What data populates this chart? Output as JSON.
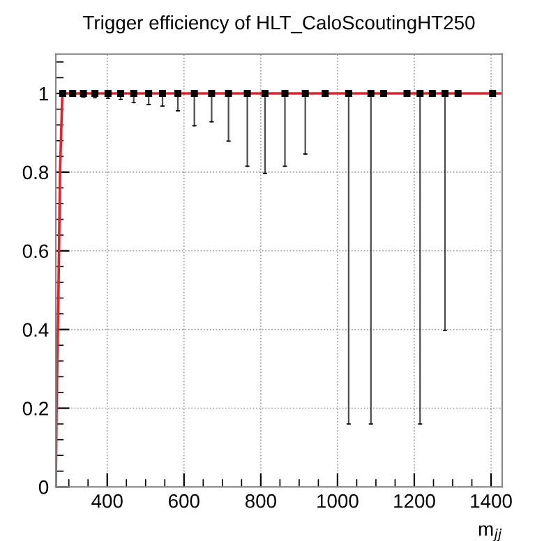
{
  "chart_data": {
    "type": "scatter",
    "title": "Trigger efficiency of HLT_CaloScoutingHT250",
    "xlabel": "m$_{jj}$",
    "xlim": [
      266,
      1429
    ],
    "xticks": [
      400,
      600,
      800,
      1000,
      1200,
      1400
    ],
    "ylim": [
      0,
      1.1
    ],
    "yticks": [
      0,
      0.2,
      0.4,
      0.6,
      0.8,
      1
    ],
    "grid": true,
    "series": [
      {
        "color": "#000000",
        "marker": "square",
        "x": [
          284,
          310,
          338,
          368,
          402,
          435,
          469,
          508,
          544,
          584,
          627,
          672,
          716,
          765,
          811,
          863,
          916,
          968,
          1029,
          1087,
          1120,
          1181,
          1215,
          1247,
          1280,
          1314,
          1404
        ],
        "values": [
          1,
          1,
          1,
          1,
          1,
          1,
          1,
          1,
          1,
          1,
          1,
          1,
          1,
          1,
          1,
          1,
          1,
          1,
          1,
          1,
          1,
          1,
          1,
          1,
          1,
          1,
          1
        ],
        "errors": [
          [
            0.998,
            1
          ],
          [
            0.997,
            1
          ],
          [
            0.991,
            1
          ],
          [
            0.989,
            1
          ],
          [
            0.988,
            1
          ],
          [
            0.985,
            1
          ],
          [
            0.977,
            1
          ],
          [
            0.972,
            1
          ],
          [
            0.968,
            1
          ],
          [
            0.956,
            1
          ],
          [
            0.918,
            1
          ],
          [
            0.928,
            1
          ],
          [
            0.879,
            1
          ],
          [
            0.815,
            1
          ],
          [
            0.797,
            1
          ],
          [
            0.815,
            1
          ],
          [
            0.846,
            1
          ],
          null,
          [
            0.16,
            1
          ],
          [
            0.16,
            1
          ],
          null,
          null,
          [
            0.16,
            1
          ],
          null,
          [
            0.398,
            1
          ],
          null,
          null
        ]
      },
      {
        "type": "line",
        "color": "#e8202a",
        "x": [
          266,
          268,
          273,
          277,
          283,
          1429
        ],
        "values": [
          0,
          0.2,
          0.5,
          0.8,
          1,
          1
        ]
      }
    ]
  }
}
